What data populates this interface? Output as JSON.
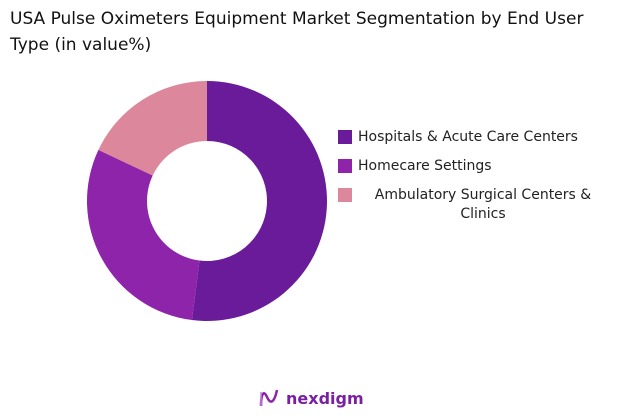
{
  "title": "USA Pulse Oximeters Equipment Market Segmentation by End User Type (in value%)",
  "brand": "nexdigm",
  "chart_data": {
    "type": "pie",
    "donut": true,
    "title": "USA Pulse Oximeters Equipment Market Segmentation by End User Type (in value%)",
    "categories": [
      "Hospitals & Acute Care Centers",
      "Homecare Settings",
      "Ambulatory Surgical Centers & Clinics"
    ],
    "values": [
      52,
      30,
      18
    ],
    "unit": "%",
    "colors": [
      "#6a1b9a",
      "#8e24aa",
      "#dc879c"
    ],
    "legend": "right"
  }
}
